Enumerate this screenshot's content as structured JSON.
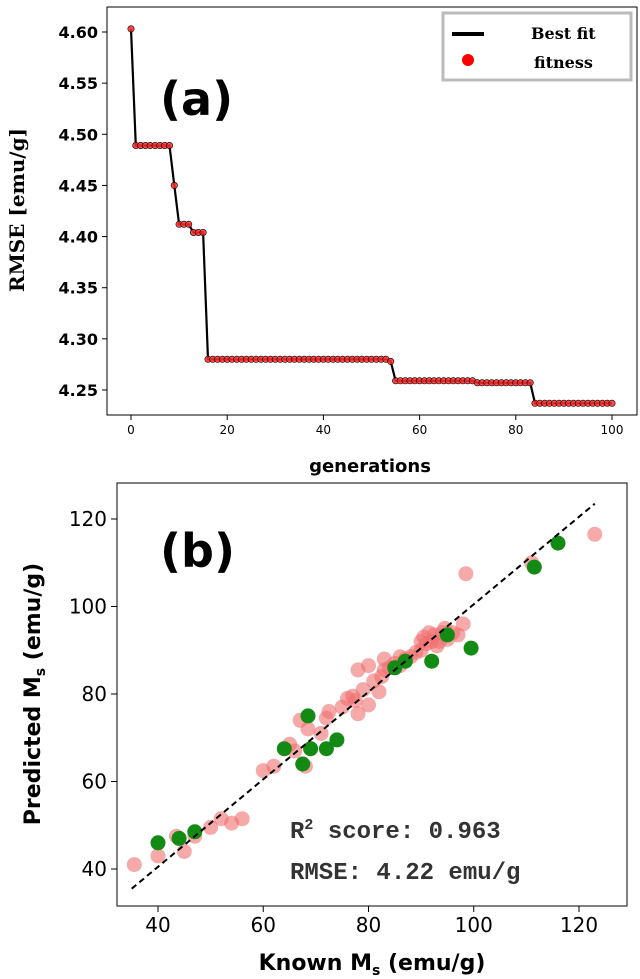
{
  "chart_data": [
    {
      "panel": "(a)",
      "type": "line",
      "xlabel": "generations",
      "ylabel": "RMSE [emu/g]",
      "xlim": [
        0,
        100
      ],
      "ylim": [
        4.23,
        4.61
      ],
      "xticks": [
        "0",
        "20",
        "40",
        "60",
        "80",
        "100"
      ],
      "yticks": [
        "4.25",
        "4.30",
        "4.35",
        "4.40",
        "4.45",
        "4.50",
        "4.55",
        "4.60"
      ],
      "legend": {
        "position": "top-right",
        "entries": [
          "Best fit",
          "fitness"
        ]
      },
      "series": [
        {
          "name": "Best fit",
          "color": "#000000",
          "steps": [
            [
              0,
              4.603
            ],
            [
              1,
              4.489
            ],
            [
              9,
              4.45
            ],
            [
              10,
              4.412
            ],
            [
              13,
              4.404
            ],
            [
              16,
              4.28
            ],
            [
              54,
              4.278
            ],
            [
              55,
              4.259
            ],
            [
              72,
              4.257
            ],
            [
              84,
              4.237
            ],
            [
              100,
              4.237
            ]
          ]
        },
        {
          "name": "fitness",
          "color": "#ff2a2a",
          "marker": "dot",
          "x_range": [
            0,
            100
          ]
        }
      ]
    },
    {
      "panel": "(b)",
      "type": "scatter",
      "xlabel": "Known M",
      "xlabel_sub": "s",
      "xlabel_suffix": " (emu/g)",
      "ylabel": "Predicted M",
      "ylabel_sub": "s",
      "ylabel_suffix": " (emu/g)",
      "xlim": [
        34,
        125
      ],
      "ylim": [
        36,
        126
      ],
      "xticks": [
        "40",
        "60",
        "80",
        "100",
        "120"
      ],
      "yticks": [
        "40",
        "60",
        "80",
        "100",
        "120"
      ],
      "annotations": {
        "r2_prefix": "R",
        "r2_sup": "2",
        "r2_rest": " score: 0.963",
        "rmse": "RMSE: 4.22 emu/g"
      },
      "fit_line": [
        [
          35,
          35.5
        ],
        [
          123,
          123.5
        ]
      ],
      "series": [
        {
          "color": "#f07070",
          "points": [
            [
              35.5,
              41
            ],
            [
              40,
              43
            ],
            [
              43.5,
              47.5
            ],
            [
              45,
              44
            ],
            [
              47,
              47.5
            ],
            [
              50,
              49.5
            ],
            [
              52,
              51.5
            ],
            [
              54,
              50.5
            ],
            [
              56,
              51.5
            ],
            [
              60,
              62.5
            ],
            [
              62,
              63.5
            ],
            [
              65,
              68.5
            ],
            [
              66,
              67
            ],
            [
              67,
              74
            ],
            [
              68,
              63.5
            ],
            [
              68.5,
              72
            ],
            [
              69,
              67.5
            ],
            [
              71,
              71
            ],
            [
              72,
              74.5
            ],
            [
              72.5,
              76
            ],
            [
              75,
              77
            ],
            [
              76,
              79
            ],
            [
              77,
              79.5
            ],
            [
              77.5,
              78.5
            ],
            [
              78,
              75.5
            ],
            [
              78,
              85.5
            ],
            [
              79,
              81
            ],
            [
              80,
              77.5
            ],
            [
              80,
              86.5
            ],
            [
              81,
              83
            ],
            [
              82,
              80.5
            ],
            [
              82.5,
              84
            ],
            [
              83,
              85.5
            ],
            [
              83,
              88
            ],
            [
              84,
              86
            ],
            [
              85,
              87
            ],
            [
              86,
              88.5
            ],
            [
              86,
              86.5
            ],
            [
              87,
              88
            ],
            [
              88,
              88.5
            ],
            [
              89,
              89.5
            ],
            [
              90,
              90
            ],
            [
              90,
              92
            ],
            [
              90.5,
              93
            ],
            [
              91,
              91.5
            ],
            [
              91.5,
              94
            ],
            [
              92,
              92
            ],
            [
              92.5,
              93.5
            ],
            [
              93,
              91
            ],
            [
              93.5,
              92
            ],
            [
              94,
              94
            ],
            [
              94.5,
              95
            ],
            [
              95,
              92.5
            ],
            [
              96,
              94
            ],
            [
              97,
              93.5
            ],
            [
              98,
              96
            ],
            [
              98.5,
              107.5
            ],
            [
              111,
              110
            ],
            [
              123,
              116.5
            ]
          ]
        },
        {
          "color": "#138a13",
          "points": [
            [
              40,
              46
            ],
            [
              44,
              47
            ],
            [
              47,
              48.5
            ],
            [
              64,
              67.5
            ],
            [
              67.5,
              64
            ],
            [
              68.5,
              75
            ],
            [
              69,
              67.5
            ],
            [
              72,
              67.5
            ],
            [
              74,
              69.5
            ],
            [
              85,
              86
            ],
            [
              87,
              87.5
            ],
            [
              92,
              87.5
            ],
            [
              95,
              93.5
            ],
            [
              99.5,
              90.5
            ],
            [
              111.5,
              109
            ],
            [
              116,
              114.5
            ]
          ]
        }
      ]
    }
  ]
}
